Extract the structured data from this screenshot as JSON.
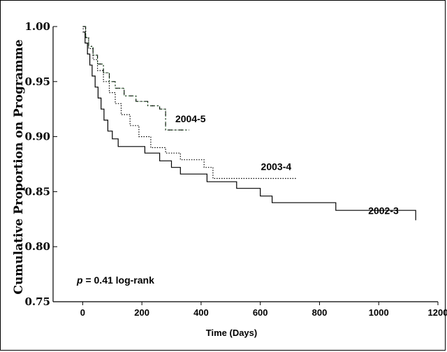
{
  "chart_data": {
    "type": "line",
    "step": true,
    "title": "",
    "xlabel": "Time (Days)",
    "ylabel": "Cumulative Proportion on Programme",
    "xlim": [
      -100,
      1200
    ],
    "ylim": [
      0.75,
      1.0
    ],
    "xticks": [
      0,
      200,
      400,
      600,
      800,
      1000,
      1200
    ],
    "yticks": [
      0.75,
      0.8,
      0.85,
      0.9,
      0.95,
      1.0
    ],
    "xtick_labels": [
      "0",
      "200",
      "400",
      "600",
      "800",
      "1000",
      "1200"
    ],
    "ytick_labels": [
      "0.75",
      "0.80",
      "0.85",
      "0.90",
      "0.95",
      "1.00"
    ],
    "grid": false,
    "annotation": {
      "p": "p",
      "rest": " = 0.41 log-rank"
    },
    "series": [
      {
        "name": "2002-3",
        "style": "solid",
        "color": "#000000",
        "x": [
          0,
          8,
          16,
          24,
          32,
          42,
          52,
          62,
          72,
          85,
          100,
          120,
          150,
          210,
          260,
          300,
          330,
          420,
          520,
          600,
          640,
          855,
          1125
        ],
        "y": [
          0.995,
          0.985,
          0.975,
          0.965,
          0.955,
          0.945,
          0.935,
          0.925,
          0.915,
          0.905,
          0.898,
          0.891,
          0.891,
          0.885,
          0.878,
          0.872,
          0.866,
          0.859,
          0.853,
          0.846,
          0.84,
          0.833,
          0.824
        ]
      },
      {
        "name": "2003-4",
        "style": "dotted",
        "color": "#000000",
        "x": [
          0,
          10,
          20,
          35,
          50,
          70,
          90,
          110,
          130,
          160,
          190,
          230,
          280,
          330,
          410,
          440,
          720
        ],
        "y": [
          0.998,
          0.99,
          0.98,
          0.97,
          0.96,
          0.95,
          0.94,
          0.93,
          0.92,
          0.91,
          0.9,
          0.89,
          0.885,
          0.879,
          0.872,
          0.862,
          0.862
        ]
      },
      {
        "name": "2004-5",
        "style": "dashdot",
        "color": "#000000",
        "overlay_color": "#2e7d32",
        "x": [
          0,
          10,
          20,
          35,
          50,
          70,
          90,
          110,
          140,
          180,
          220,
          260,
          280,
          360
        ],
        "y": [
          1.0,
          0.99,
          0.982,
          0.974,
          0.966,
          0.958,
          0.95,
          0.944,
          0.937,
          0.932,
          0.928,
          0.925,
          0.906,
          0.906
        ]
      }
    ]
  }
}
